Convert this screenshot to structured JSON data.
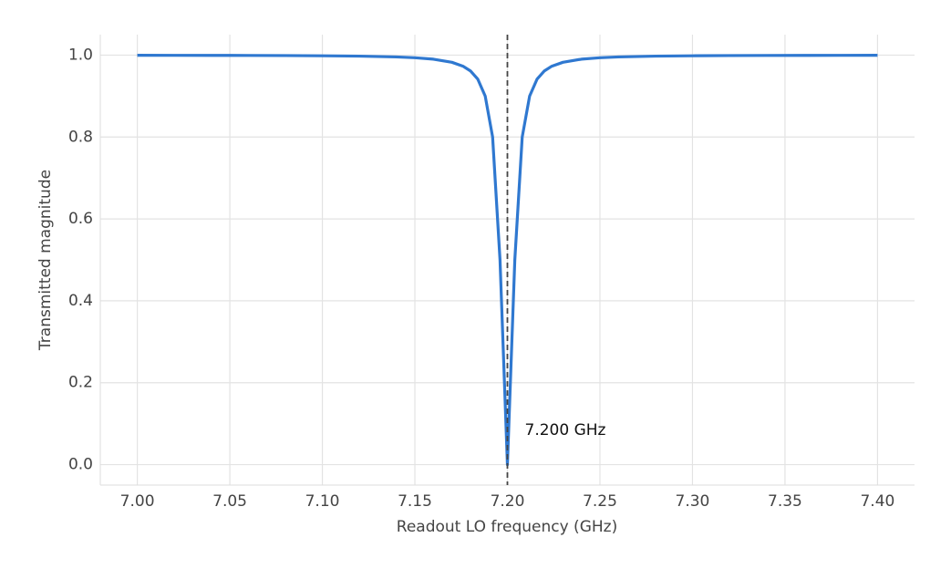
{
  "chart_data": {
    "type": "line",
    "x_label": "Readout LO frequency (GHz)",
    "y_label": "Transmitted magnitude",
    "x": [
      7.0,
      7.02,
      7.04,
      7.06,
      7.08,
      7.1,
      7.12,
      7.14,
      7.15,
      7.16,
      7.17,
      7.176,
      7.18,
      7.184,
      7.188,
      7.192,
      7.196,
      7.2,
      7.204,
      7.208,
      7.212,
      7.216,
      7.22,
      7.224,
      7.23,
      7.24,
      7.25,
      7.26,
      7.28,
      7.3,
      7.32,
      7.34,
      7.36,
      7.38,
      7.4
    ],
    "series": [
      {
        "name": "Transmitted magnitude",
        "color": "#2f78d0",
        "values": [
          0.9996,
          0.9995,
          0.9994,
          0.9992,
          0.9989,
          0.9984,
          0.9975,
          0.9956,
          0.9936,
          0.9901,
          0.9825,
          0.973,
          0.9615,
          0.9412,
          0.9,
          0.8,
          0.5,
          0.0,
          0.5,
          0.8,
          0.9,
          0.9412,
          0.9615,
          0.973,
          0.9825,
          0.9901,
          0.9936,
          0.9956,
          0.9975,
          0.9984,
          0.9989,
          0.9992,
          0.9994,
          0.9995,
          0.9996
        ]
      }
    ],
    "xlim": [
      6.98,
      7.42
    ],
    "ylim": [
      -0.05,
      1.05
    ],
    "xticks": [
      {
        "value": 7.0,
        "label": "7.00"
      },
      {
        "value": 7.05,
        "label": "7.05"
      },
      {
        "value": 7.1,
        "label": "7.10"
      },
      {
        "value": 7.15,
        "label": "7.15"
      },
      {
        "value": 7.2,
        "label": "7.20"
      },
      {
        "value": 7.25,
        "label": "7.25"
      },
      {
        "value": 7.3,
        "label": "7.30"
      },
      {
        "value": 7.35,
        "label": "7.35"
      },
      {
        "value": 7.4,
        "label": "7.40"
      }
    ],
    "yticks": [
      {
        "value": 0,
        "label": "0.0"
      },
      0.2,
      0.4,
      0.6,
      0.8,
      {
        "value": 1,
        "label": "1.0"
      }
    ],
    "grid": true,
    "vline": 7.2,
    "annotation": {
      "text": "7.200 GHz",
      "x": 7.2
    }
  }
}
